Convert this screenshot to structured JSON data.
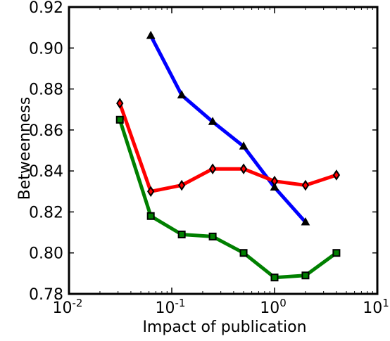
{
  "chart_data": {
    "type": "line",
    "xscale": "log",
    "xlim": [
      0.01,
      10
    ],
    "ylim": [
      0.78,
      0.92
    ],
    "xlabel": "Impact of publication",
    "ylabel": "Betweenness",
    "grid": false,
    "yticks": [
      0.78,
      0.8,
      0.82,
      0.84,
      0.86,
      0.88,
      0.9,
      0.92
    ],
    "ytick_labels": [
      "0.78",
      "0.80",
      "0.82",
      "0.84",
      "0.86",
      "0.88",
      "0.90",
      "0.92"
    ],
    "xticks": [
      {
        "value": 0.01,
        "base": "10",
        "exp": "-2"
      },
      {
        "value": 0.1,
        "base": "10",
        "exp": "-1"
      },
      {
        "value": 1,
        "base": "10",
        "exp": "0"
      },
      {
        "value": 10,
        "base": "10",
        "exp": "1"
      }
    ],
    "series": [
      {
        "color": "#0000ff",
        "marker": "triangle",
        "x": [
          0.0625,
          0.125,
          0.25,
          0.5,
          1,
          2
        ],
        "y": [
          0.906,
          0.877,
          0.864,
          0.852,
          0.832,
          0.815
        ]
      },
      {
        "color": "#ff0000",
        "marker": "diamond",
        "x": [
          0.03125,
          0.0625,
          0.125,
          0.25,
          0.5,
          1,
          2,
          4
        ],
        "y": [
          0.873,
          0.83,
          0.833,
          0.841,
          0.841,
          0.835,
          0.833,
          0.838
        ]
      },
      {
        "color": "#008000",
        "marker": "square",
        "x": [
          0.03125,
          0.0625,
          0.125,
          0.25,
          0.5,
          1,
          2,
          4
        ],
        "y": [
          0.865,
          0.818,
          0.809,
          0.808,
          0.8,
          0.788,
          0.789,
          0.8
        ]
      }
    ]
  }
}
